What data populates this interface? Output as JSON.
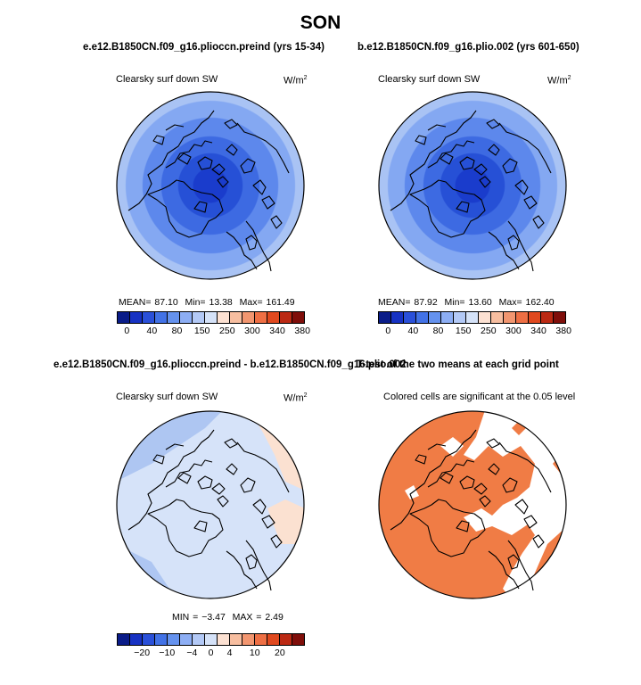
{
  "figure": {
    "title": "SON"
  },
  "colors": {
    "scale_a": [
      "#0a1c88",
      "#1732c3",
      "#2a50d9",
      "#4272e6",
      "#6592ee",
      "#8daef4",
      "#b3c9f6",
      "#d5e2f8",
      "#fce1d2",
      "#f7bea0",
      "#f29670",
      "#ee6f44",
      "#e0491f",
      "#bb2913",
      "#7f0e0a"
    ],
    "scale_b": [
      "#0a1c88",
      "#1732c3",
      "#2a50d9",
      "#4272e6",
      "#6592ee",
      "#8daef4",
      "#b3c9f6",
      "#d5e2f8",
      "#fce1d2",
      "#f7bea0",
      "#f29670",
      "#ee6f44",
      "#e0491f",
      "#bb2913",
      "#7f0e0a"
    ],
    "sig_fill": "#f07c45"
  },
  "chart_data": [
    {
      "type": "heatmap",
      "title": "e.e12.B1850CN.f09_g16.pliocсn.preind (yrs 15-34)",
      "variable": "Clearsky surf down SW",
      "units": "W/m",
      "units_exp": "2",
      "stats": {
        "mean": "87.10",
        "min": "13.38",
        "max": "161.49"
      },
      "stats_text": {
        "mean": "MEAN=   87.10",
        "min": "Min=   13.38",
        "max": "Max=  161.49"
      },
      "colorbar_ticks": [
        "0",
        "40",
        "80",
        "150",
        "250",
        "300",
        "340",
        "380"
      ],
      "pattern": "Clear-sky downward shortwave minimum near the North Pole (dark blue), increasing toward lower latitudes (light blue)"
    },
    {
      "type": "heatmap",
      "title": "b.e12.B1850CN.f09_g16.plio.002 (yrs 601-650)",
      "variable": "Clearsky surf down SW",
      "units": "W/m",
      "units_exp": "2",
      "stats": {
        "mean": "87.92",
        "min": "13.60",
        "max": "162.40"
      },
      "stats_text": {
        "mean": "MEAN=   87.92",
        "min": "Min=   13.60",
        "max": "Max=  162.40"
      },
      "colorbar_ticks": [
        "0",
        "40",
        "80",
        "150",
        "250",
        "300",
        "340",
        "380"
      ]
    },
    {
      "type": "heatmap",
      "title": "e.e12.B1850CN.f09_g16.pliocсn.preind - b.e12.B1850CN.f09_g16.plio.002",
      "variable": "Clearsky surf down SW",
      "units": "W/m",
      "units_exp": "2",
      "stats": {
        "min": "-3.47",
        "max": "2.49"
      },
      "stats_text": {
        "min": "MIN =  −3.47",
        "max": "MAX =   2.49"
      },
      "colorbar_ticks": [
        "−20",
        "−10",
        "−4",
        "0",
        "4",
        "10",
        "20"
      ]
    },
    {
      "type": "heatmap",
      "title": "T-test of the two means at each grid point",
      "subtitle": "Colored cells are significant at the 0.05 level"
    }
  ]
}
